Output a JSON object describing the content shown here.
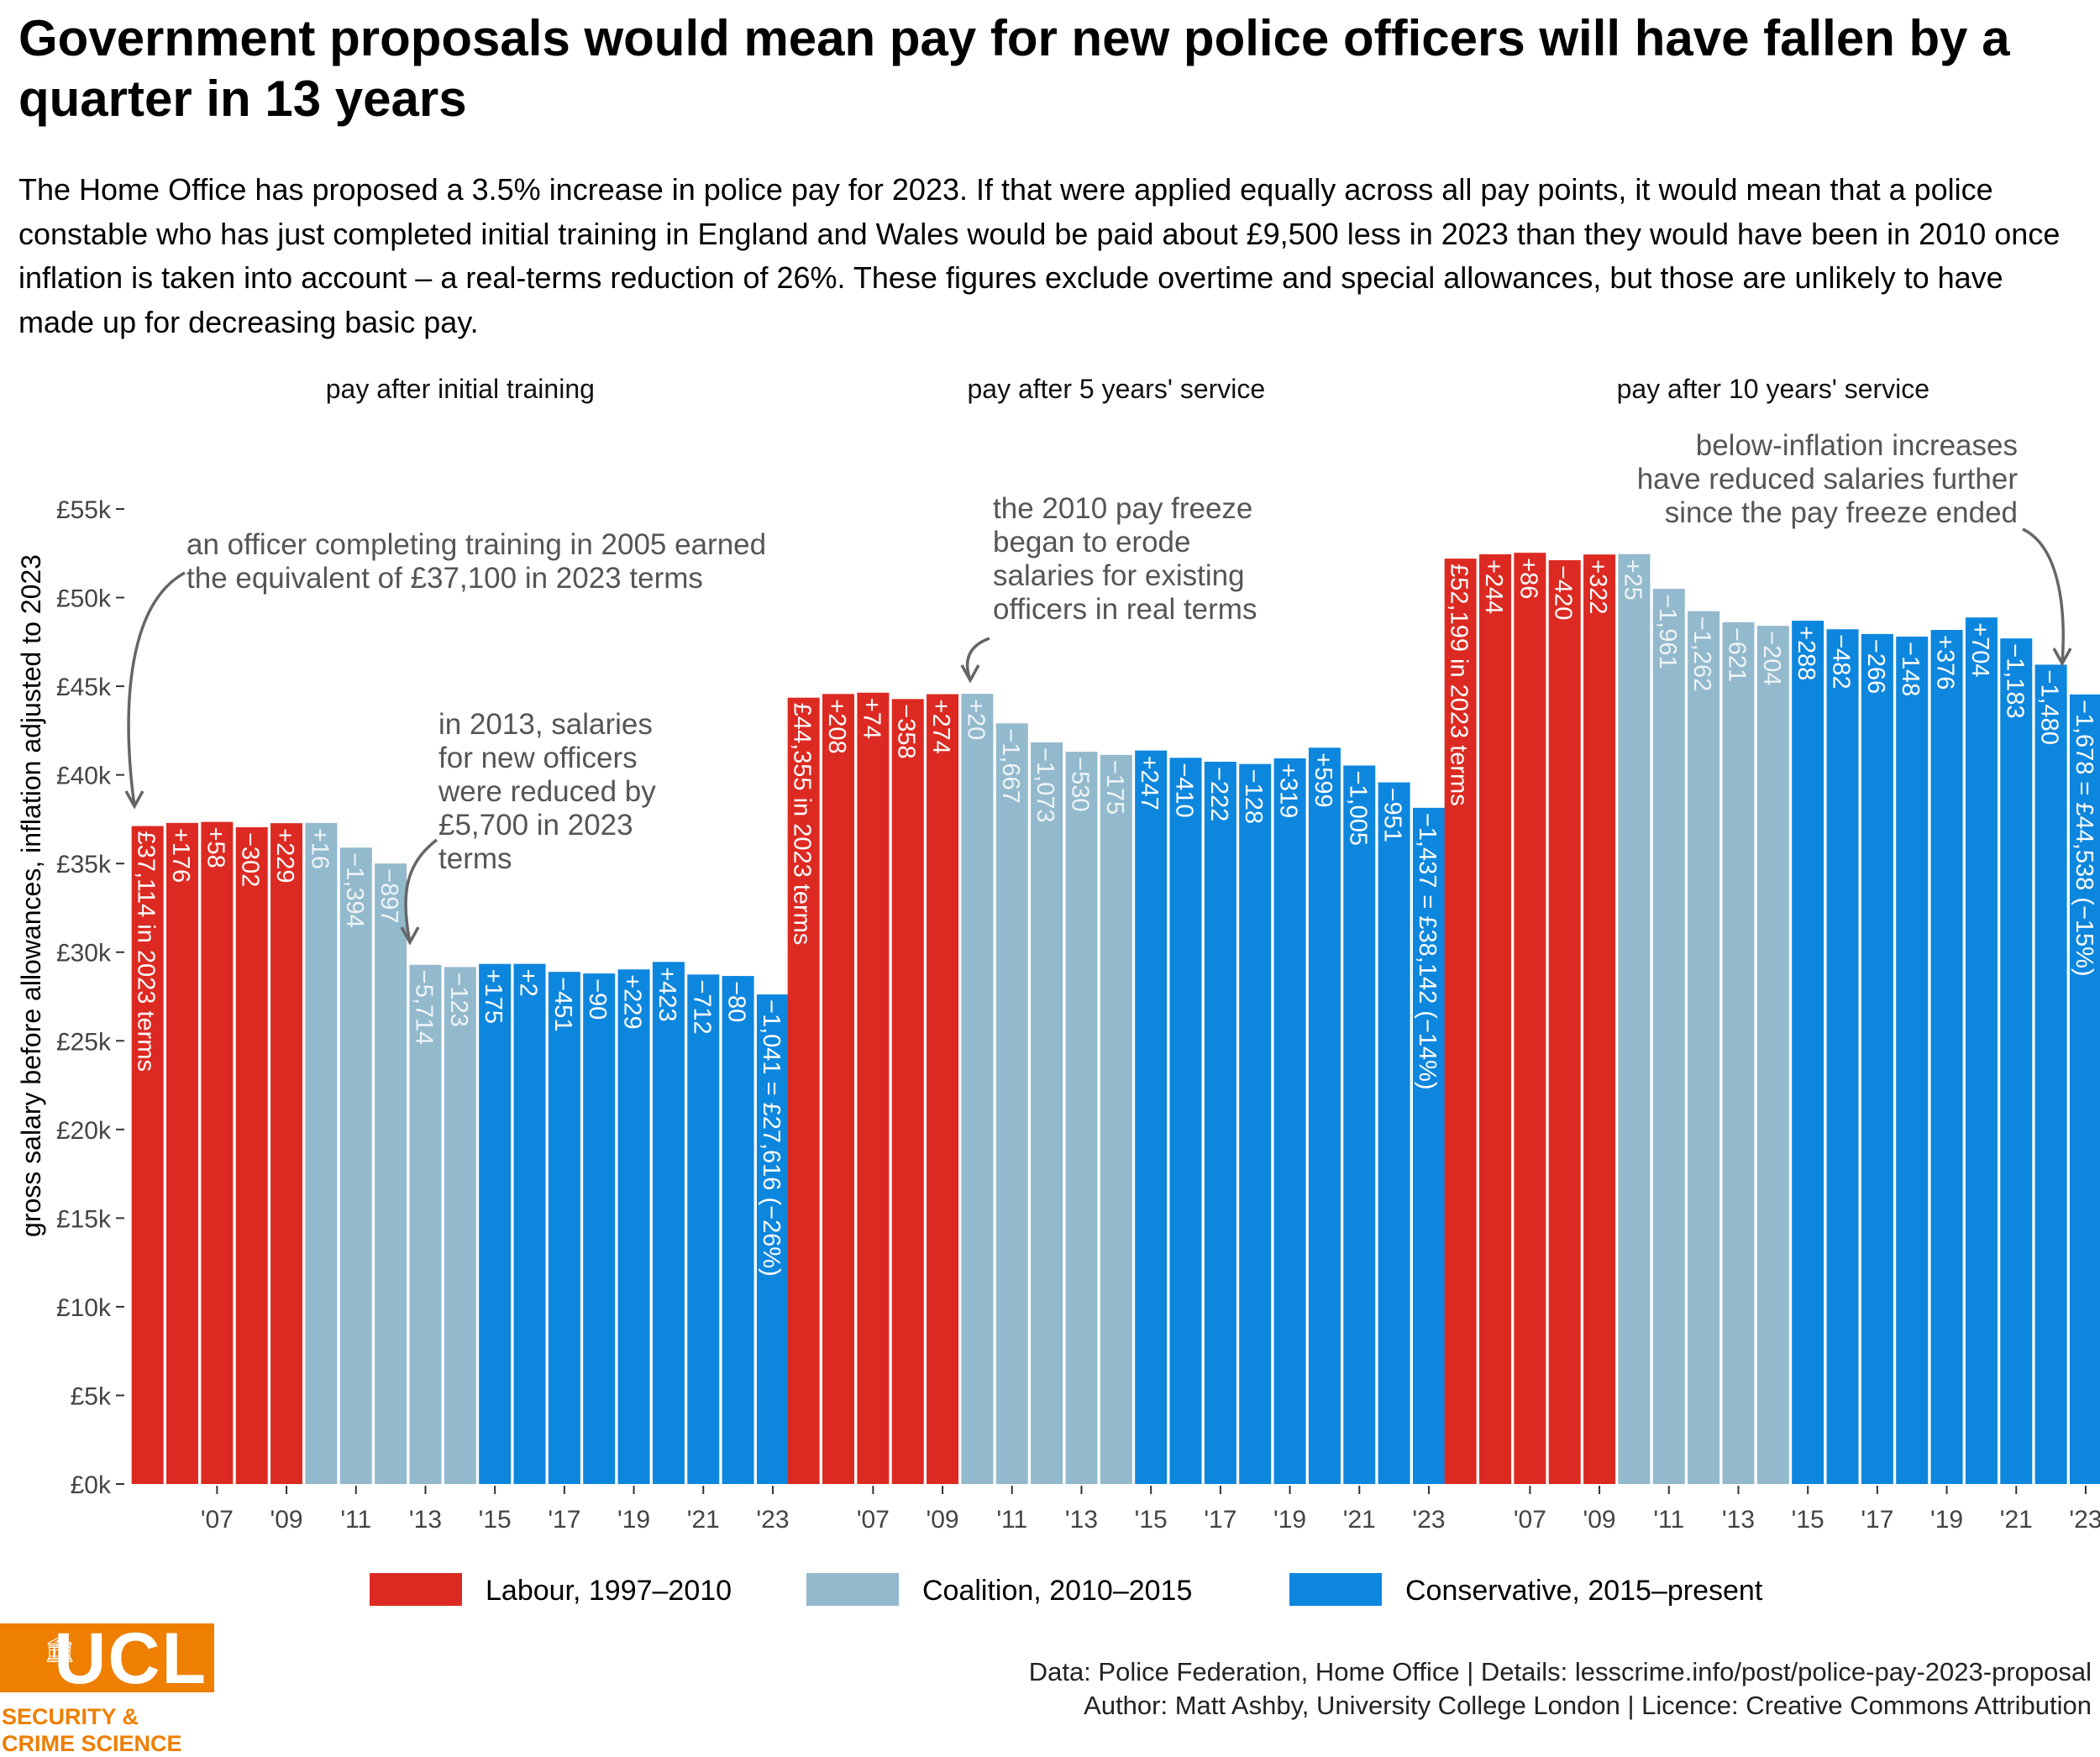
{
  "title": "Government proposals would mean pay for new police officers will have fallen by a quarter in 13 years",
  "subtitle": "The Home Office has proposed a 3.5% increase in police pay for 2023. If that were applied equally across all pay points, it would mean that a police constable who has just completed initial training in England and Wales would be paid about £9,500 less in 2023 than they would have been in 2010 once inflation is taken into account – a real-terms reduction of 26%. These figures exclude overtime and special allowances, but those are unlikely to have made up for decreasing basic pay.",
  "colors": {
    "Labour": "#dc2a22",
    "Coalition": "#93b9cc",
    "Conservative": "#0d86de",
    "annotation": "#555555",
    "arrow": "#666666",
    "logo": "#ee7f00"
  },
  "chart_data": {
    "type": "bar",
    "ylabel": "gross salary before allowances, inflation adjusted to 2023",
    "ylim": [
      0,
      55000
    ],
    "yticks": [
      0,
      5000,
      10000,
      15000,
      20000,
      25000,
      30000,
      35000,
      40000,
      45000,
      50000,
      55000
    ],
    "ytick_labels": [
      "£0k",
      "£5k",
      "£10k",
      "£15k",
      "£20k",
      "£25k",
      "£30k",
      "£35k",
      "£40k",
      "£45k",
      "£50k",
      "£55k"
    ],
    "x": [
      2005,
      2006,
      2007,
      2008,
      2009,
      2010,
      2011,
      2012,
      2013,
      2014,
      2015,
      2016,
      2017,
      2018,
      2019,
      2020,
      2021,
      2022,
      2023
    ],
    "xtick_labels": [
      "'07",
      "'09",
      "'11",
      "'13",
      "'15",
      "'17",
      "'19",
      "'21",
      "'23"
    ],
    "xtick_years": [
      2007,
      2009,
      2011,
      2013,
      2015,
      2017,
      2019,
      2021,
      2023
    ],
    "government": [
      "Labour",
      "Labour",
      "Labour",
      "Labour",
      "Labour",
      "Coalition",
      "Coalition",
      "Coalition",
      "Coalition",
      "Coalition",
      "Conservative",
      "Conservative",
      "Conservative",
      "Conservative",
      "Conservative",
      "Conservative",
      "Conservative",
      "Conservative",
      "Conservative"
    ],
    "legend": {
      "placement": "bottom",
      "entries": [
        {
          "key": "Labour",
          "label": "Labour, 1997–2010"
        },
        {
          "key": "Coalition",
          "label": "Coalition, 2010–2015"
        },
        {
          "key": "Conservative",
          "label": "Conservative, 2015–present"
        }
      ]
    },
    "panels": [
      {
        "title": "pay after initial training",
        "values": [
          37114,
          37290,
          37348,
          37046,
          37275,
          37291,
          35897,
          35000,
          29286,
          29163,
          29338,
          29340,
          28889,
          28799,
          29028,
          29451,
          28739,
          28657,
          27616
        ],
        "labels": [
          "£37,114 in 2023 terms",
          "+176",
          "+58",
          "−302",
          "+229",
          "+16",
          "−1,394",
          "−897",
          "−5,714",
          "−123",
          "+175",
          "+2",
          "−451",
          "−90",
          "+229",
          "+423",
          "−712",
          "−80",
          "−1,041 = £27,616 (−26%)"
        ]
      },
      {
        "title": "pay after 5 years' service",
        "values": [
          44355,
          44563,
          44637,
          44279,
          44553,
          44573,
          42906,
          41833,
          41303,
          41128,
          41375,
          40965,
          40743,
          40615,
          40934,
          41533,
          40528,
          39577,
          38142
        ],
        "labels": [
          "£44,355 in 2023 terms",
          "+208",
          "+74",
          "−358",
          "+274",
          "+20",
          "−1,667",
          "−1,073",
          "−530",
          "−175",
          "+247",
          "−410",
          "−222",
          "−128",
          "+319",
          "+599",
          "−1,005",
          "−951",
          "−1,437 = £38,142 (−14%)"
        ]
      },
      {
        "title": "pay after 10 years' service",
        "values": [
          52199,
          52443,
          52529,
          52109,
          52431,
          52456,
          50495,
          49233,
          48612,
          48408,
          48696,
          48214,
          47948,
          47800,
          48176,
          48880,
          47697,
          46217,
          44538
        ],
        "labels": [
          "£52,199 in 2023 terms",
          "+244",
          "+86",
          "−420",
          "+322",
          "+25",
          "−1,961",
          "−1,262",
          "−621",
          "−204",
          "+288",
          "−482",
          "−266",
          "−148",
          "+376",
          "+704",
          "−1,183",
          "−1,480",
          "−1,678 = £44,538 (−15%)"
        ]
      }
    ],
    "annotations": [
      {
        "panel": 0,
        "lines": [
          "an officer completing training in 2005 earned",
          "the equivalent of £37,100 in 2023 terms"
        ]
      },
      {
        "panel": 0,
        "lines": [
          "in 2013, salaries",
          "for new officers",
          "were reduced by",
          "£5,700 in 2023",
          "terms"
        ]
      },
      {
        "panel": 1,
        "lines": [
          "the 2010 pay freeze",
          "began to erode",
          "salaries for existing",
          "officers in real terms"
        ]
      },
      {
        "panel": 2,
        "lines": [
          "below-inflation increases",
          "have reduced salaries further",
          "since the pay freeze ended"
        ]
      }
    ]
  },
  "footer": {
    "data_line": "Data: Police Federation, Home Office | Details: lesscrime.info/post/police-pay-2023-proposal",
    "author_line": "Author: Matt Ashby, University College London | Licence: Creative Commons Attribution"
  },
  "logo": {
    "name": "UCL",
    "line1": "SECURITY &",
    "line2": "CRIME SCIENCE"
  }
}
